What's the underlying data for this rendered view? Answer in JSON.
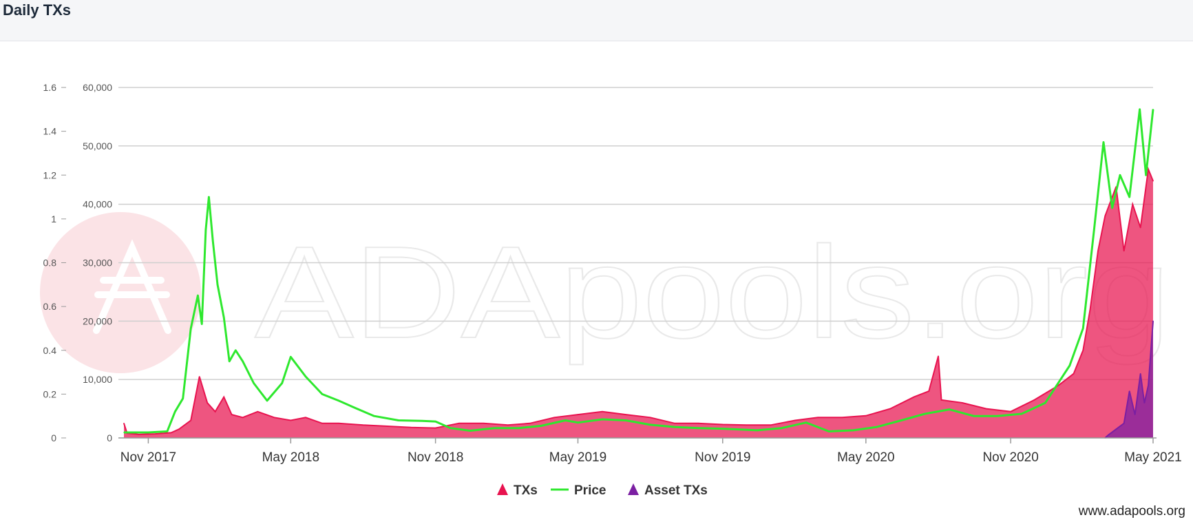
{
  "header": {
    "title": "Daily TXs"
  },
  "watermark": {
    "text": "ADApools.org",
    "footer": "www.adapools.org"
  },
  "chart_data": {
    "type": "area",
    "title": "Daily TXs",
    "x_start": "2017-10-01",
    "x_end": "2021-05-01",
    "x_ticks": [
      "Nov 2017",
      "May 2018",
      "Nov 2018",
      "May 2019",
      "Nov 2019",
      "May 2020",
      "Nov 2020",
      "May 2021"
    ],
    "y_left": {
      "min": 0,
      "max": 60000,
      "ticks": [
        "0",
        "10,000",
        "20,000",
        "30,000",
        "40,000",
        "50,000",
        "60,000"
      ]
    },
    "y_price": {
      "min": 0,
      "max": 1.6,
      "ticks": [
        "0",
        "0.2",
        "0.4",
        "0.6",
        "0.8",
        "1",
        "1.2",
        "1.4",
        "1.6"
      ]
    },
    "grid": true,
    "legend_position": "bottom",
    "colors": {
      "txs": "#e8134f",
      "price": "#2ee82e",
      "asset_txs": "#7b1fa2"
    },
    "series": [
      {
        "name": "TXs",
        "axis": "left",
        "points": [
          [
            "2017-10-01",
            2500
          ],
          [
            "2017-10-05",
            800
          ],
          [
            "2017-10-20",
            600
          ],
          [
            "2017-11-10",
            700
          ],
          [
            "2017-11-30",
            900
          ],
          [
            "2017-12-10",
            1500
          ],
          [
            "2017-12-25",
            3000
          ],
          [
            "2018-01-05",
            10500
          ],
          [
            "2018-01-15",
            6000
          ],
          [
            "2018-01-25",
            4500
          ],
          [
            "2018-02-05",
            7000
          ],
          [
            "2018-02-15",
            4000
          ],
          [
            "2018-03-01",
            3500
          ],
          [
            "2018-03-20",
            4500
          ],
          [
            "2018-04-10",
            3500
          ],
          [
            "2018-05-01",
            3000
          ],
          [
            "2018-05-20",
            3500
          ],
          [
            "2018-06-10",
            2500
          ],
          [
            "2018-07-01",
            2500
          ],
          [
            "2018-08-01",
            2200
          ],
          [
            "2018-09-01",
            2000
          ],
          [
            "2018-10-01",
            1800
          ],
          [
            "2018-11-01",
            1700
          ],
          [
            "2018-12-01",
            2500
          ],
          [
            "2019-01-01",
            2500
          ],
          [
            "2019-02-01",
            2200
          ],
          [
            "2019-03-01",
            2500
          ],
          [
            "2019-04-01",
            3500
          ],
          [
            "2019-05-01",
            4000
          ],
          [
            "2019-06-01",
            4500
          ],
          [
            "2019-07-01",
            4000
          ],
          [
            "2019-08-01",
            3500
          ],
          [
            "2019-09-01",
            2500
          ],
          [
            "2019-10-01",
            2500
          ],
          [
            "2019-11-01",
            2300
          ],
          [
            "2019-12-01",
            2200
          ],
          [
            "2020-01-01",
            2200
          ],
          [
            "2020-02-01",
            3000
          ],
          [
            "2020-03-01",
            3500
          ],
          [
            "2020-04-01",
            3500
          ],
          [
            "2020-05-01",
            3800
          ],
          [
            "2020-06-01",
            5000
          ],
          [
            "2020-07-01",
            7000
          ],
          [
            "2020-07-20",
            8000
          ],
          [
            "2020-08-01",
            14000
          ],
          [
            "2020-08-05",
            6500
          ],
          [
            "2020-09-01",
            6000
          ],
          [
            "2020-10-01",
            5000
          ],
          [
            "2020-11-01",
            4500
          ],
          [
            "2020-12-01",
            6500
          ],
          [
            "2021-01-01",
            9000
          ],
          [
            "2021-01-20",
            11000
          ],
          [
            "2021-02-01",
            15000
          ],
          [
            "2021-02-10",
            22000
          ],
          [
            "2021-02-20",
            32000
          ],
          [
            "2021-03-01",
            38000
          ],
          [
            "2021-03-15",
            43000
          ],
          [
            "2021-03-25",
            32000
          ],
          [
            "2021-04-05",
            40000
          ],
          [
            "2021-04-15",
            36000
          ],
          [
            "2021-04-25",
            46000
          ],
          [
            "2021-05-01",
            44000
          ]
        ]
      },
      {
        "name": "Price",
        "axis": "right",
        "points": [
          [
            "2017-10-01",
            0.025
          ],
          [
            "2017-10-15",
            0.025
          ],
          [
            "2017-11-01",
            0.025
          ],
          [
            "2017-11-25",
            0.03
          ],
          [
            "2017-12-05",
            0.12
          ],
          [
            "2017-12-15",
            0.18
          ],
          [
            "2017-12-25",
            0.5
          ],
          [
            "2018-01-03",
            0.65
          ],
          [
            "2018-01-08",
            0.52
          ],
          [
            "2018-01-13",
            0.95
          ],
          [
            "2018-01-17",
            1.1
          ],
          [
            "2018-01-22",
            0.9
          ],
          [
            "2018-01-28",
            0.7
          ],
          [
            "2018-02-05",
            0.55
          ],
          [
            "2018-02-12",
            0.35
          ],
          [
            "2018-02-20",
            0.4
          ],
          [
            "2018-03-01",
            0.35
          ],
          [
            "2018-03-15",
            0.25
          ],
          [
            "2018-04-01",
            0.17
          ],
          [
            "2018-04-20",
            0.25
          ],
          [
            "2018-05-01",
            0.37
          ],
          [
            "2018-05-20",
            0.28
          ],
          [
            "2018-06-10",
            0.2
          ],
          [
            "2018-07-01",
            0.17
          ],
          [
            "2018-07-20",
            0.14
          ],
          [
            "2018-08-15",
            0.1
          ],
          [
            "2018-09-15",
            0.08
          ],
          [
            "2018-10-15",
            0.078
          ],
          [
            "2018-11-01",
            0.075
          ],
          [
            "2018-11-20",
            0.045
          ],
          [
            "2018-12-15",
            0.033
          ],
          [
            "2019-01-15",
            0.045
          ],
          [
            "2019-02-15",
            0.045
          ],
          [
            "2019-03-15",
            0.055
          ],
          [
            "2019-04-15",
            0.08
          ],
          [
            "2019-05-01",
            0.07
          ],
          [
            "2019-06-01",
            0.085
          ],
          [
            "2019-07-01",
            0.08
          ],
          [
            "2019-08-01",
            0.06
          ],
          [
            "2019-09-01",
            0.05
          ],
          [
            "2019-10-01",
            0.045
          ],
          [
            "2019-11-01",
            0.042
          ],
          [
            "2019-12-15",
            0.035
          ],
          [
            "2020-01-15",
            0.045
          ],
          [
            "2020-02-15",
            0.07
          ],
          [
            "2020-03-15",
            0.03
          ],
          [
            "2020-04-15",
            0.035
          ],
          [
            "2020-05-15",
            0.05
          ],
          [
            "2020-06-15",
            0.08
          ],
          [
            "2020-07-15",
            0.11
          ],
          [
            "2020-08-15",
            0.13
          ],
          [
            "2020-09-15",
            0.1
          ],
          [
            "2020-10-15",
            0.1
          ],
          [
            "2020-11-15",
            0.11
          ],
          [
            "2020-12-15",
            0.16
          ],
          [
            "2021-01-15",
            0.33
          ],
          [
            "2021-02-01",
            0.5
          ],
          [
            "2021-02-15",
            0.95
          ],
          [
            "2021-02-27",
            1.35
          ],
          [
            "2021-03-10",
            1.05
          ],
          [
            "2021-03-20",
            1.2
          ],
          [
            "2021-04-01",
            1.1
          ],
          [
            "2021-04-14",
            1.5
          ],
          [
            "2021-04-22",
            1.2
          ],
          [
            "2021-05-01",
            1.5
          ]
        ]
      },
      {
        "name": "Asset TXs",
        "axis": "left",
        "points": [
          [
            "2021-03-01",
            0
          ],
          [
            "2021-03-05",
            500
          ],
          [
            "2021-03-15",
            1500
          ],
          [
            "2021-03-25",
            2500
          ],
          [
            "2021-04-01",
            8000
          ],
          [
            "2021-04-08",
            4000
          ],
          [
            "2021-04-15",
            11000
          ],
          [
            "2021-04-20",
            6000
          ],
          [
            "2021-04-25",
            9000
          ],
          [
            "2021-05-01",
            20000
          ]
        ]
      }
    ]
  }
}
